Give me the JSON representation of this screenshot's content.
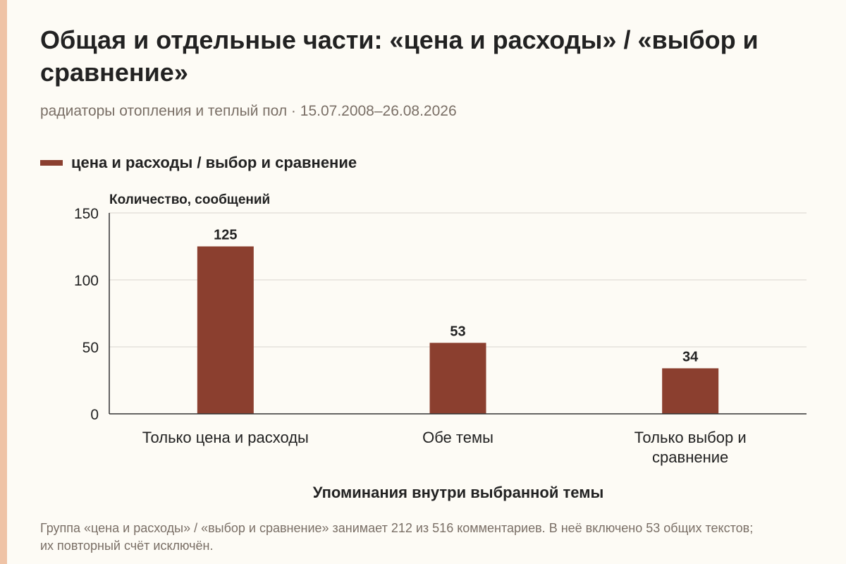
{
  "title": "Общая и отдельные части: «цена и расходы» / «выбор и сравнение»",
  "subtitle": "радиаторы отопления и теплый пол · 15.07.2008–26.08.2026",
  "footnote": "Группа «цена и расходы» / «выбор и сравнение» занимает 212 из 516 комментариев. В неё включено 53 общих текстов; их повторный счёт исключён.",
  "colors": {
    "bar": "#8b3f2f",
    "accent": "#efc3a6",
    "grid": "#d9d6d0"
  },
  "chart_data": {
    "type": "bar",
    "categories": [
      [
        "Только цена и расходы"
      ],
      [
        "Обе темы"
      ],
      [
        "Только выбор и",
        "сравнение"
      ]
    ],
    "series": [
      {
        "name": "цена и расходы / выбор и сравнение",
        "values": [
          125,
          53,
          34
        ]
      }
    ],
    "ylabel": "Количество, сообщений",
    "xlabel": "Упоминания внутри выбранной темы",
    "ylim": [
      0,
      150
    ],
    "yticks": [
      0,
      50,
      100,
      150
    ],
    "grid": true,
    "legend": "top-left"
  }
}
